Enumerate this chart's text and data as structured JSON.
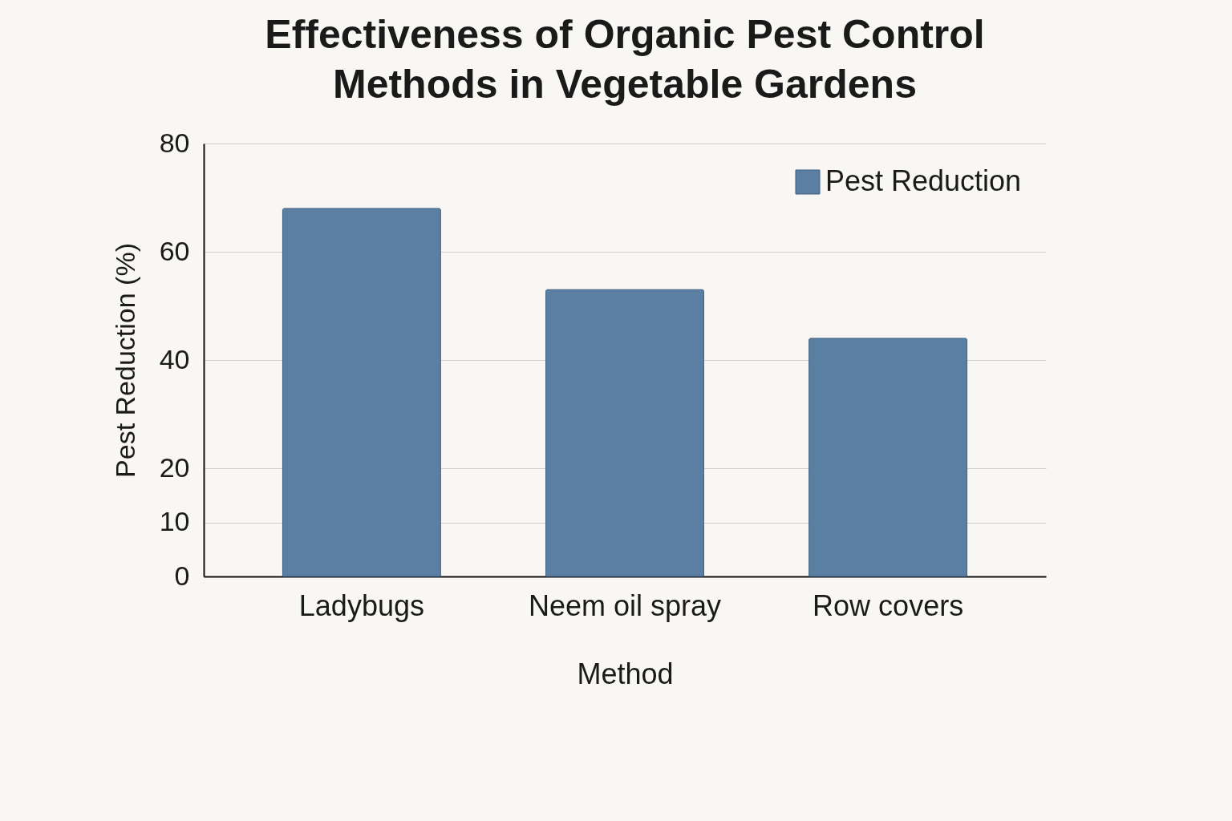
{
  "chart_data": {
    "type": "bar",
    "title": [
      "Effectiveness of Organic Pest Control",
      "Methods in Vegetable Gardens"
    ],
    "xlabel": "Method",
    "ylabel": "Pest Reduction (%)",
    "categories": [
      "Ladybugs",
      "Neem oil spray",
      "Row covers"
    ],
    "series": [
      {
        "name": "Pest Reduction",
        "color": "#5b7ea3",
        "values": [
          68,
          53,
          44
        ]
      }
    ],
    "ylim": [
      0,
      80
    ],
    "yticks": [
      0,
      10,
      20,
      40,
      60,
      80
    ],
    "grid": "y",
    "legend": "top right"
  }
}
